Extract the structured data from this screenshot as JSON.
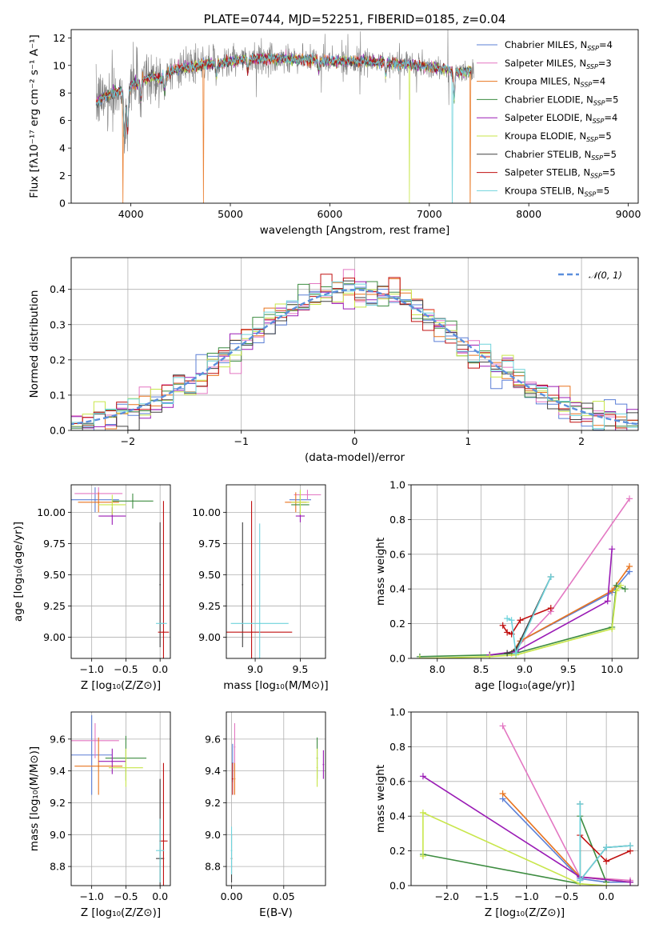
{
  "figure_title": "PLATE=0744, MJD=52251, FIBERID=0185, z=0.04",
  "colors": {
    "Chabrier MILES": "#5b7fd6",
    "Salpeter MILES": "#e377c2",
    "Kroupa MILES": "#e8741f",
    "Chabrier ELODIE": "#3d8c40",
    "Salpeter ELODIE": "#9a1bb5",
    "Kroupa ELODIE": "#c8e64a",
    "Chabrier STELIB": "#404040",
    "Salpeter STELIB": "#c01010",
    "Kroupa STELIB": "#6fd3dc",
    "data": "#7f7f7f",
    "gaussian": "#5b8fdc"
  },
  "chart_data": [
    {
      "id": "spectrum",
      "type": "line",
      "title": "PLATE=0744, MJD=52251, FIBERID=0185, z=0.04",
      "xlabel": "wavelength [Angstrom, rest frame]",
      "ylabel": "Flux [fλ10⁻¹⁷ erg cm⁻² s⁻¹ A⁻¹]",
      "xlim": [
        3400,
        9100
      ],
      "ylim": [
        0,
        12.6
      ],
      "xticks": [
        4000,
        5000,
        6000,
        7000,
        8000,
        9000
      ],
      "yticks": [
        0,
        2,
        4,
        6,
        8,
        10,
        12
      ],
      "legend_position": "top-right",
      "legend": [
        {
          "series": "Chabrier MILES",
          "label": "Chabrier MILES, N",
          "sub": "SSP",
          "tail": "=4"
        },
        {
          "series": "Salpeter MILES",
          "label": "Salpeter MILES, N",
          "sub": "SSP",
          "tail": "=3"
        },
        {
          "series": "Kroupa MILES",
          "label": "Kroupa MILES, N",
          "sub": "SSP",
          "tail": "=4"
        },
        {
          "series": "Chabrier ELODIE",
          "label": "Chabrier ELODIE, N",
          "sub": "SSP",
          "tail": "=5"
        },
        {
          "series": "Salpeter ELODIE",
          "label": "Salpeter ELODIE, N",
          "sub": "SSP",
          "tail": "=4"
        },
        {
          "series": "Kroupa ELODIE",
          "label": "Kroupa ELODIE, N",
          "sub": "SSP",
          "tail": "=5"
        },
        {
          "series": "Chabrier STELIB",
          "label": "Chabrier STELIB, N",
          "sub": "SSP",
          "tail": "=5"
        },
        {
          "series": "Salpeter STELIB",
          "label": "Salpeter STELIB, N",
          "sub": "SSP",
          "tail": "=5"
        },
        {
          "series": "Kroupa STELIB",
          "label": "Kroupa STELIB, N",
          "sub": "SSP",
          "tail": "=5"
        }
      ],
      "data_range": [
        3650,
        7450
      ],
      "model_range": [
        3650,
        7420
      ],
      "continuum": [
        [
          3650,
          7.2
        ],
        [
          3700,
          7.6
        ],
        [
          3800,
          8.0
        ],
        [
          3900,
          8.2
        ],
        [
          3950,
          7.2
        ],
        [
          4000,
          8.6
        ],
        [
          4100,
          8.9
        ],
        [
          4200,
          9.2
        ],
        [
          4300,
          9.0
        ],
        [
          4400,
          9.6
        ],
        [
          4500,
          9.8
        ],
        [
          4700,
          10.0
        ],
        [
          4900,
          10.2
        ],
        [
          5100,
          10.4
        ],
        [
          5300,
          10.5
        ],
        [
          5500,
          10.5
        ],
        [
          5800,
          10.4
        ],
        [
          6000,
          10.3
        ],
        [
          6300,
          10.3
        ],
        [
          6600,
          10.2
        ],
        [
          6900,
          10.0
        ],
        [
          7100,
          9.8
        ],
        [
          7200,
          9.7
        ],
        [
          7300,
          9.5
        ],
        [
          7420,
          9.6
        ]
      ],
      "model_dropouts": [
        {
          "series": "Kroupa MILES",
          "x": 3920
        },
        {
          "series": "Kroupa MILES",
          "x": 4730
        },
        {
          "series": "Kroupa ELODIE",
          "x": 6800
        },
        {
          "series": "Kroupa STELIB",
          "x": 7230
        },
        {
          "series": "Kroupa MILES",
          "x": 7410
        }
      ]
    },
    {
      "id": "residual-histogram",
      "type": "histogram",
      "xlabel": "(data-model)/error",
      "ylabel": "Normed distribution",
      "xlim": [
        -2.5,
        2.5
      ],
      "ylim": [
        0,
        0.49
      ],
      "xticks": [
        -2,
        -1,
        0,
        1,
        2
      ],
      "yticks": [
        0.0,
        0.1,
        0.2,
        0.3,
        0.4
      ],
      "grid": true,
      "legend_position": "top-right",
      "legend": [
        {
          "series": "gaussian",
          "label": "𝒩(0, 1)"
        }
      ],
      "bin_width": 0.1
    },
    {
      "id": "age-vs-metallicity",
      "type": "scatter",
      "xlabel": "Z [log₁₀(Z/Z⊙)]",
      "ylabel": "age  [log₁₀(age/yr)]",
      "xlim": [
        -1.3,
        0.15
      ],
      "ylim": [
        8.83,
        10.22
      ],
      "xticks": [
        -1.0,
        -0.5,
        0.0
      ],
      "yticks": [
        9.0,
        9.25,
        9.5,
        9.75,
        10.0
      ],
      "grid": true,
      "points": [
        {
          "series": "Chabrier MILES",
          "x": -0.95,
          "y": 10.1,
          "xerr": 0.35,
          "yerr": 0.1
        },
        {
          "series": "Salpeter MILES",
          "x": -0.9,
          "y": 10.15,
          "xerr": 0.35,
          "yerr": 0.05
        },
        {
          "series": "Kroupa MILES",
          "x": -0.9,
          "y": 10.08,
          "xerr": 0.3,
          "yerr": 0.08
        },
        {
          "series": "Chabrier ELODIE",
          "x": -0.4,
          "y": 10.09,
          "xerr": 0.3,
          "yerr": 0.06
        },
        {
          "series": "Salpeter ELODIE",
          "x": -0.7,
          "y": 9.97,
          "xerr": 0.2,
          "yerr": 0.07
        },
        {
          "series": "Kroupa ELODIE",
          "x": -0.7,
          "y": 10.06,
          "xerr": 0.2,
          "yerr": 0.08
        },
        {
          "series": "Chabrier STELIB",
          "x": 0.0,
          "y": 9.42,
          "xerr": 0.0,
          "yerr": 0.5
        },
        {
          "series": "Salpeter STELIB",
          "x": 0.05,
          "y": 9.04,
          "xerr": 0.08,
          "yerr": 1.05
        },
        {
          "series": "Kroupa STELIB",
          "x": 0.02,
          "y": 9.11,
          "xerr": 0.08,
          "yerr": 0.0
        }
      ]
    },
    {
      "id": "age-vs-mass",
      "type": "scatter",
      "xlabel": "mass [log₁₀(M/M⊙)]",
      "ylabel": "",
      "xlim": [
        8.68,
        9.78
      ],
      "ylim": [
        8.83,
        10.22
      ],
      "xticks": [
        9.0,
        9.5
      ],
      "yticks": [
        9.0,
        9.25,
        9.5,
        9.75,
        10.0
      ],
      "grid": true,
      "points": [
        {
          "series": "Chabrier MILES",
          "x": 9.5,
          "y": 10.1,
          "xerr": 0.12,
          "yerr": 0.07
        },
        {
          "series": "Salpeter MILES",
          "x": 9.58,
          "y": 10.14,
          "xerr": 0.15,
          "yerr": 0.04
        },
        {
          "series": "Kroupa MILES",
          "x": 9.45,
          "y": 10.08,
          "xerr": 0.12,
          "yerr": 0.08
        },
        {
          "series": "Chabrier ELODIE",
          "x": 9.5,
          "y": 10.06,
          "xerr": 0.1,
          "yerr": 0.08
        },
        {
          "series": "Salpeter ELODIE",
          "x": 9.5,
          "y": 9.97,
          "xerr": 0.05,
          "yerr": 0.05
        },
        {
          "series": "Kroupa ELODIE",
          "x": 9.5,
          "y": 10.08,
          "xerr": 0.1,
          "yerr": 0.1
        },
        {
          "series": "Chabrier STELIB",
          "x": 8.86,
          "y": 9.42,
          "xerr": 0.0,
          "yerr": 0.5
        },
        {
          "series": "Salpeter STELIB",
          "x": 8.96,
          "y": 9.04,
          "xerr": 0.45,
          "yerr": 1.05
        },
        {
          "series": "Kroupa STELIB",
          "x": 9.05,
          "y": 9.11,
          "xerr": 0.32,
          "yerr": 0.8
        }
      ]
    },
    {
      "id": "mass-weight-vs-age",
      "type": "line",
      "xlabel": "age  [log₁₀(age/yr)]",
      "ylabel": "mass weight",
      "xlim": [
        7.7,
        10.3
      ],
      "ylim": [
        0,
        1.0
      ],
      "xticks": [
        8.0,
        8.5,
        9.0,
        9.5,
        10.0
      ],
      "yticks": [
        0.0,
        0.2,
        0.4,
        0.6,
        0.8,
        1.0
      ],
      "grid": true,
      "series": [
        {
          "name": "Chabrier MILES",
          "points": [
            [
              8.85,
              0.03
            ],
            [
              8.95,
              0.1
            ],
            [
              10.0,
              0.38
            ],
            [
              10.2,
              0.5
            ]
          ]
        },
        {
          "name": "Salpeter MILES",
          "points": [
            [
              8.85,
              0.03
            ],
            [
              9.3,
              0.27
            ],
            [
              10.2,
              0.92
            ]
          ]
        },
        {
          "name": "Kroupa MILES",
          "points": [
            [
              8.85,
              0.03
            ],
            [
              8.95,
              0.1
            ],
            [
              10.0,
              0.39
            ],
            [
              10.2,
              0.53
            ]
          ]
        },
        {
          "name": "Chabrier ELODIE",
          "points": [
            [
              7.8,
              0.01
            ],
            [
              8.6,
              0.02
            ],
            [
              8.9,
              0.03
            ],
            [
              10.0,
              0.18
            ],
            [
              10.05,
              0.42
            ],
            [
              10.15,
              0.4
            ]
          ]
        },
        {
          "name": "Salpeter ELODIE",
          "points": [
            [
              8.6,
              0.02
            ],
            [
              8.9,
              0.04
            ],
            [
              9.95,
              0.33
            ],
            [
              10.0,
              0.63
            ]
          ]
        },
        {
          "name": "Kroupa ELODIE",
          "points": [
            [
              7.8,
              0.0
            ],
            [
              8.6,
              0.01
            ],
            [
              8.9,
              0.02
            ],
            [
              10.0,
              0.17
            ],
            [
              10.05,
              0.39
            ],
            [
              10.1,
              0.42
            ]
          ]
        },
        {
          "name": "Chabrier STELIB",
          "points": [
            [
              8.8,
              0.03
            ],
            [
              8.9,
              0.05
            ],
            [
              9.3,
              0.47
            ]
          ]
        },
        {
          "name": "Salpeter STELIB",
          "points": [
            [
              8.75,
              0.19
            ],
            [
              8.8,
              0.15
            ],
            [
              8.85,
              0.14
            ],
            [
              8.95,
              0.22
            ],
            [
              9.3,
              0.29
            ]
          ]
        },
        {
          "name": "Kroupa STELIB",
          "points": [
            [
              8.8,
              0.23
            ],
            [
              8.85,
              0.22
            ],
            [
              8.9,
              0.03
            ],
            [
              9.3,
              0.47
            ]
          ]
        }
      ]
    },
    {
      "id": "mass-vs-metallicity",
      "type": "scatter",
      "xlabel": "Z [log₁₀(Z/Z⊙)]",
      "ylabel": "mass [log₁₀(M/M⊙)]",
      "xlim": [
        -1.3,
        0.15
      ],
      "ylim": [
        8.68,
        9.77
      ],
      "xticks": [
        -1.0,
        -0.5,
        0.0
      ],
      "yticks": [
        8.8,
        9.0,
        9.2,
        9.4,
        9.6
      ],
      "grid": true,
      "points": [
        {
          "series": "Chabrier MILES",
          "x": -1.0,
          "y": 9.5,
          "xerr": 0.3,
          "yerr": 0.25
        },
        {
          "series": "Salpeter MILES",
          "x": -0.95,
          "y": 9.59,
          "xerr": 0.35,
          "yerr": 0.11
        },
        {
          "series": "Kroupa MILES",
          "x": -0.9,
          "y": 9.43,
          "xerr": 0.35,
          "yerr": 0.18
        },
        {
          "series": "Chabrier ELODIE",
          "x": -0.5,
          "y": 9.48,
          "xerr": 0.3,
          "yerr": 0.14
        },
        {
          "series": "Salpeter ELODIE",
          "x": -0.7,
          "y": 9.46,
          "xerr": 0.2,
          "yerr": 0.08
        },
        {
          "series": "Kroupa ELODIE",
          "x": -0.5,
          "y": 9.42,
          "xerr": 0.25,
          "yerr": 0.12
        },
        {
          "series": "Chabrier STELIB",
          "x": 0.0,
          "y": 8.85,
          "xerr": 0.06,
          "yerr": 0.5
        },
        {
          "series": "Salpeter STELIB",
          "x": 0.05,
          "y": 8.96,
          "xerr": 0.06,
          "yerr": 0.49
        },
        {
          "series": "Kroupa STELIB",
          "x": 0.0,
          "y": 8.9,
          "xerr": 0.06,
          "yerr": 0.2
        }
      ]
    },
    {
      "id": "mass-vs-extinction",
      "type": "scatter",
      "xlabel": "E(B-V)",
      "ylabel": "",
      "xlim": [
        -0.005,
        0.09
      ],
      "ylim": [
        8.68,
        9.77
      ],
      "xticks": [
        0.0,
        0.05
      ],
      "yticks": [
        8.8,
        9.0,
        9.2,
        9.4,
        9.6
      ],
      "grid": true,
      "points": [
        {
          "series": "Chabrier MILES",
          "x": 0.001,
          "y": 9.45,
          "xerr": 0,
          "yerr": 0.12
        },
        {
          "series": "Salpeter MILES",
          "x": 0.003,
          "y": 9.55,
          "xerr": 0,
          "yerr": 0.15
        },
        {
          "series": "Kroupa MILES",
          "x": 0.003,
          "y": 9.35,
          "xerr": 0,
          "yerr": 0.1
        },
        {
          "series": "Chabrier ELODIE",
          "x": 0.082,
          "y": 9.48,
          "xerr": 0,
          "yerr": 0.13
        },
        {
          "series": "Salpeter ELODIE",
          "x": 0.088,
          "y": 9.44,
          "xerr": 0,
          "yerr": 0.09
        },
        {
          "series": "Kroupa ELODIE",
          "x": 0.082,
          "y": 9.42,
          "xerr": 0,
          "yerr": 0.12
        },
        {
          "series": "Chabrier STELIB",
          "x": 0.0,
          "y": 8.85,
          "xerr": 0,
          "yerr": 0.15
        },
        {
          "series": "Salpeter STELIB",
          "x": 0.001,
          "y": 9.35,
          "xerr": 0,
          "yerr": 0.1
        },
        {
          "series": "Kroupa STELIB",
          "x": 0.0,
          "y": 8.9,
          "xerr": 0,
          "yerr": 0.15
        }
      ]
    },
    {
      "id": "mass-weight-vs-metallicity",
      "type": "line",
      "xlabel": "Z [log₁₀(Z/Z⊙)]",
      "ylabel": "mass weight",
      "xlim": [
        -2.45,
        0.4
      ],
      "ylim": [
        0,
        1.0
      ],
      "xticks": [
        -2.0,
        -1.5,
        -1.0,
        -0.5,
        0.0
      ],
      "yticks": [
        0.0,
        0.2,
        0.4,
        0.6,
        0.8,
        1.0
      ],
      "grid": true,
      "series": [
        {
          "name": "Chabrier MILES",
          "points": [
            [
              -1.3,
              0.5
            ],
            [
              -0.33,
              0.04
            ],
            [
              0.0,
              0.02
            ],
            [
              0.3,
              0.02
            ]
          ]
        },
        {
          "name": "Salpeter MILES",
          "points": [
            [
              -1.3,
              0.92
            ],
            [
              -0.33,
              0.05
            ],
            [
              0.3,
              0.03
            ]
          ]
        },
        {
          "name": "Kroupa MILES",
          "points": [
            [
              -1.3,
              0.53
            ],
            [
              -0.33,
              0.05
            ],
            [
              0.3,
              0.02
            ]
          ]
        },
        {
          "name": "Chabrier ELODIE",
          "points": [
            [
              -2.3,
              0.18
            ],
            [
              -0.33,
              0.01
            ],
            [
              -0.33,
              0.4
            ],
            [
              0.0,
              0.02
            ]
          ]
        },
        {
          "name": "Salpeter ELODIE",
          "points": [
            [
              -2.3,
              0.63
            ],
            [
              -0.33,
              0.05
            ],
            [
              0.3,
              0.02
            ]
          ]
        },
        {
          "name": "Kroupa ELODIE",
          "points": [
            [
              -2.3,
              0.17
            ],
            [
              -2.3,
              0.42
            ],
            [
              -0.33,
              0.01
            ],
            [
              0.0,
              0.0
            ]
          ]
        },
        {
          "name": "Chabrier STELIB",
          "points": [
            [
              -0.33,
              0.47
            ],
            [
              -0.33,
              0.03
            ],
            [
              0.0,
              0.22
            ],
            [
              0.3,
              0.23
            ]
          ]
        },
        {
          "name": "Salpeter STELIB",
          "points": [
            [
              -0.33,
              0.29
            ],
            [
              0.0,
              0.14
            ],
            [
              0.3,
              0.2
            ]
          ]
        },
        {
          "name": "Kroupa STELIB",
          "points": [
            [
              -0.33,
              0.47
            ],
            [
              -0.33,
              0.03
            ],
            [
              0.0,
              0.22
            ],
            [
              0.3,
              0.23
            ]
          ]
        }
      ]
    }
  ]
}
